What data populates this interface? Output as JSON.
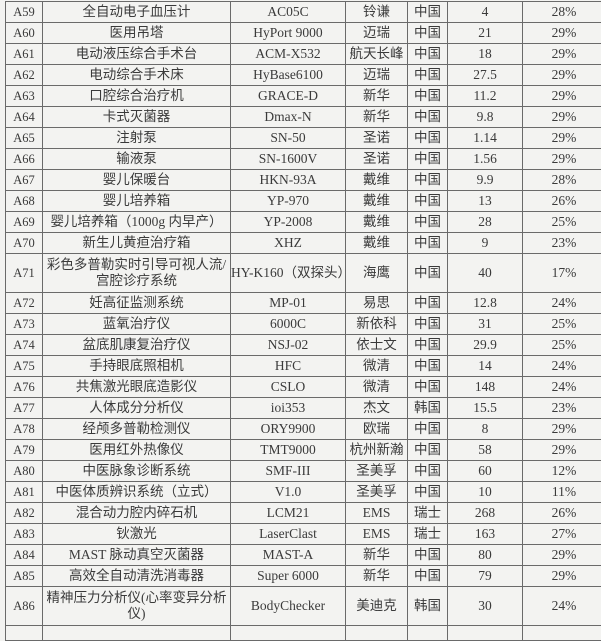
{
  "rows": [
    {
      "id": "A59",
      "name": "全自动电子血压计",
      "model": "AC05C",
      "brand": "铃谦",
      "country": "中国",
      "price": "4",
      "rate": "28%"
    },
    {
      "id": "A60",
      "name": "医用吊塔",
      "model": "HyPort 9000",
      "brand": "迈瑞",
      "country": "中国",
      "price": "21",
      "rate": "29%"
    },
    {
      "id": "A61",
      "name": "电动液压综合手术台",
      "model": "ACM-X532",
      "brand": "航天长峰",
      "country": "中国",
      "price": "18",
      "rate": "29%"
    },
    {
      "id": "A62",
      "name": "电动综合手术床",
      "model": "HyBase6100",
      "brand": "迈瑞",
      "country": "中国",
      "price": "27.5",
      "rate": "29%"
    },
    {
      "id": "A63",
      "name": "口腔综合治疗机",
      "model": "GRACE-D",
      "brand": "新华",
      "country": "中国",
      "price": "11.2",
      "rate": "29%"
    },
    {
      "id": "A64",
      "name": "卡式灭菌器",
      "model": "Dmax-N",
      "brand": "新华",
      "country": "中国",
      "price": "9.8",
      "rate": "29%"
    },
    {
      "id": "A65",
      "name": "注射泵",
      "model": "SN-50",
      "brand": "圣诺",
      "country": "中国",
      "price": "1.14",
      "rate": "29%"
    },
    {
      "id": "A66",
      "name": "输液泵",
      "model": "SN-1600V",
      "brand": "圣诺",
      "country": "中国",
      "price": "1.56",
      "rate": "29%"
    },
    {
      "id": "A67",
      "name": "婴儿保暖台",
      "model": "HKN-93A",
      "brand": "戴维",
      "country": "中国",
      "price": "9.9",
      "rate": "28%"
    },
    {
      "id": "A68",
      "name": "婴儿培养箱",
      "model": "YP-970",
      "brand": "戴维",
      "country": "中国",
      "price": "13",
      "rate": "26%"
    },
    {
      "id": "A69",
      "name": "婴儿培养箱（1000g 内早产）",
      "model": "YP-2008",
      "brand": "戴维",
      "country": "中国",
      "price": "28",
      "rate": "25%"
    },
    {
      "id": "A70",
      "name": "新生儿黄疸治疗箱",
      "model": "XHZ",
      "brand": "戴维",
      "country": "中国",
      "price": "9",
      "rate": "23%"
    },
    {
      "id": "A71",
      "name": "彩色多普勒实时引导可视人流/宫腔诊疗系统",
      "model": "HY-K160（双探头）",
      "brand": "海鹰",
      "country": "中国",
      "price": "40",
      "rate": "17%",
      "double": true
    },
    {
      "id": "A72",
      "name": "妊高征监测系统",
      "model": "MP-01",
      "brand": "易思",
      "country": "中国",
      "price": "12.8",
      "rate": "24%"
    },
    {
      "id": "A73",
      "name": "蓝氧治疗仪",
      "model": "6000C",
      "brand": "新依科",
      "country": "中国",
      "price": "31",
      "rate": "25%"
    },
    {
      "id": "A74",
      "name": "盆底肌康复治疗仪",
      "model": "NSJ-02",
      "brand": "依士文",
      "country": "中国",
      "price": "29.9",
      "rate": "25%"
    },
    {
      "id": "A75",
      "name": "手持眼底照相机",
      "model": "HFC",
      "brand": "微清",
      "country": "中国",
      "price": "14",
      "rate": "24%"
    },
    {
      "id": "A76",
      "name": "共焦激光眼底造影仪",
      "model": "CSLO",
      "brand": "微清",
      "country": "中国",
      "price": "148",
      "rate": "24%"
    },
    {
      "id": "A77",
      "name": "人体成分分析仪",
      "model": "ioi353",
      "brand": "杰文",
      "country": "韩国",
      "price": "15.5",
      "rate": "23%"
    },
    {
      "id": "A78",
      "name": "经颅多普勒检测仪",
      "model": "ORY9900",
      "brand": "欧瑞",
      "country": "中国",
      "price": "8",
      "rate": "29%"
    },
    {
      "id": "A79",
      "name": "医用红外热像仪",
      "model": "TMT9000",
      "brand": "杭州新瀚",
      "country": "中国",
      "price": "58",
      "rate": "29%"
    },
    {
      "id": "A80",
      "name": "中医脉象诊断系统",
      "model": "SMF-III",
      "brand": "圣美孚",
      "country": "中国",
      "price": "60",
      "rate": "12%"
    },
    {
      "id": "A81",
      "name": "中医体质辨识系统（立式）",
      "model": "V1.0",
      "brand": "圣美孚",
      "country": "中国",
      "price": "10",
      "rate": "11%"
    },
    {
      "id": "A82",
      "name": "混合动力腔内碎石机",
      "model": "LCM21",
      "brand": "EMS",
      "country": "瑞士",
      "price": "268",
      "rate": "26%"
    },
    {
      "id": "A83",
      "name": "钬激光",
      "model": "LaserClast",
      "brand": "EMS",
      "country": "瑞士",
      "price": "163",
      "rate": "27%"
    },
    {
      "id": "A84",
      "name": "MAST 脉动真空灭菌器",
      "model": "MAST-A",
      "brand": "新华",
      "country": "中国",
      "price": "80",
      "rate": "29%"
    },
    {
      "id": "A85",
      "name": "高效全自动清洗消毒器",
      "model": "Super 6000",
      "brand": "新华",
      "country": "中国",
      "price": "79",
      "rate": "29%"
    },
    {
      "id": "A86",
      "name": "精神压力分析仪(心率变异分析仪)",
      "model": "BodyChecker",
      "brand": "美迪克",
      "country": "韩国",
      "price": "30",
      "rate": "24%",
      "double": true
    }
  ]
}
